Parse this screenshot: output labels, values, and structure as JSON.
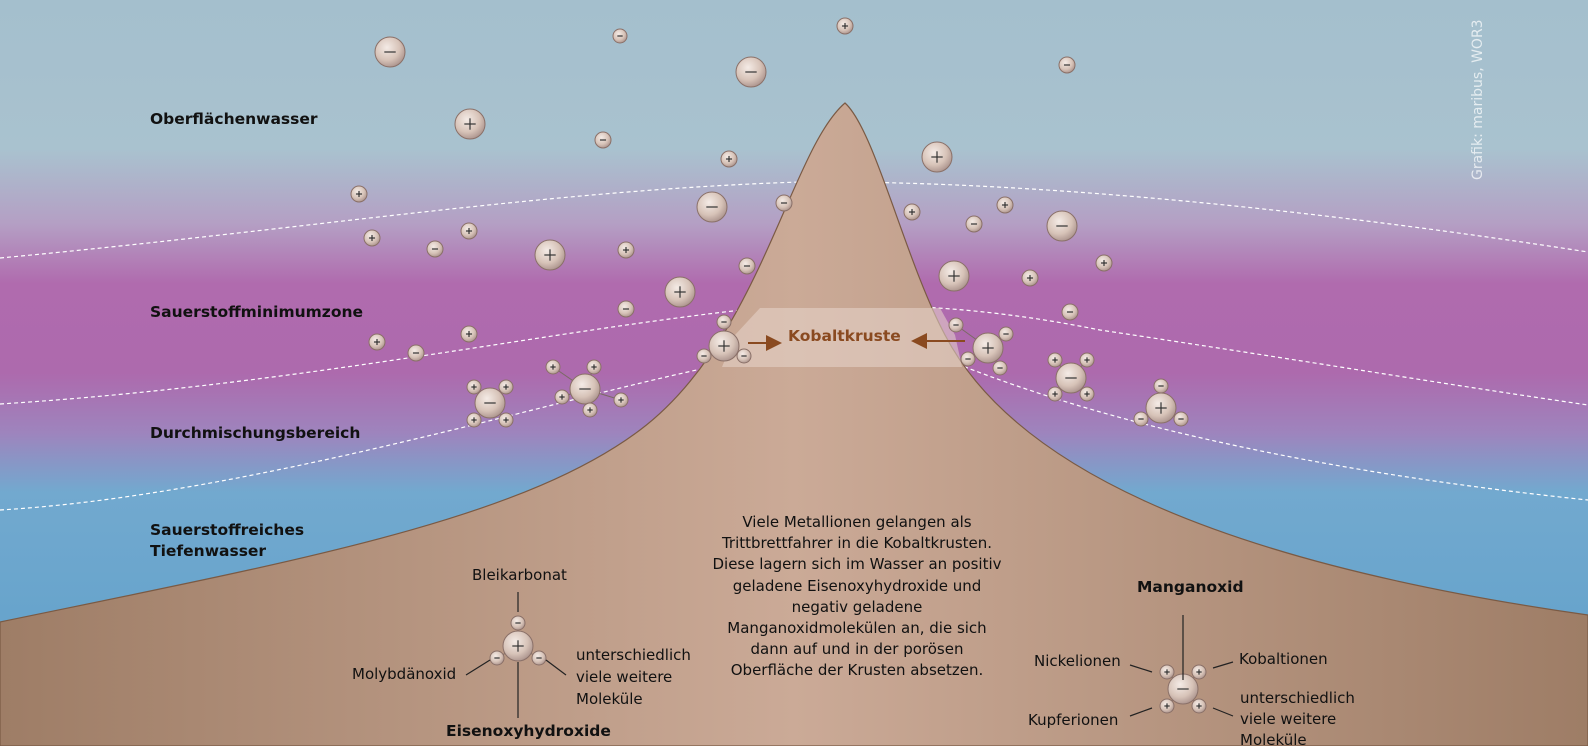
{
  "credit": "Grafik: maribus, WOR3",
  "zones": {
    "surface": "Oberflächenwasser",
    "omz": "Sauerstoffminimumzone",
    "mixing": "Durchmischungsbereich",
    "deep_line1": "Sauerstoffreiches",
    "deep_line2": "Tiefenwasser"
  },
  "crust_label": "Kobaltkruste",
  "description": "Viele Metallionen gelangen als Trittbrettfahrer in die Kobaltkrusten. Diese lagern sich im Wasser an positiv geladene Eisenoxyhydroxide und negativ geladene Manganoxidmolekülen an, die sich dann auf und in der porösen Oberfläche der Krusten absetzen.",
  "left_legend": {
    "top": "Bleikarbonat",
    "left": "Molybdänoxid",
    "right_line1": "unterschiedlich",
    "right_line2": "viele weitere",
    "right_line3": "Moleküle",
    "bottom": "Eisenoxyhydroxide"
  },
  "right_legend": {
    "title": "Manganoxid",
    "upper_left": "Nickelionen",
    "upper_right": "Kobaltionen",
    "lower_left": "Kupferionen",
    "lower_right_line1": "unterschiedlich",
    "lower_right_line2": "viele weitere",
    "lower_right_line3": "Moleküle"
  },
  "colors": {
    "surface_water": "#a9c2cf",
    "oxygen_minimum": "#b26cae",
    "deep_water": "#5ea7cf",
    "seamount": "#c4a08c",
    "crust_arrow": "#8a4a20"
  }
}
